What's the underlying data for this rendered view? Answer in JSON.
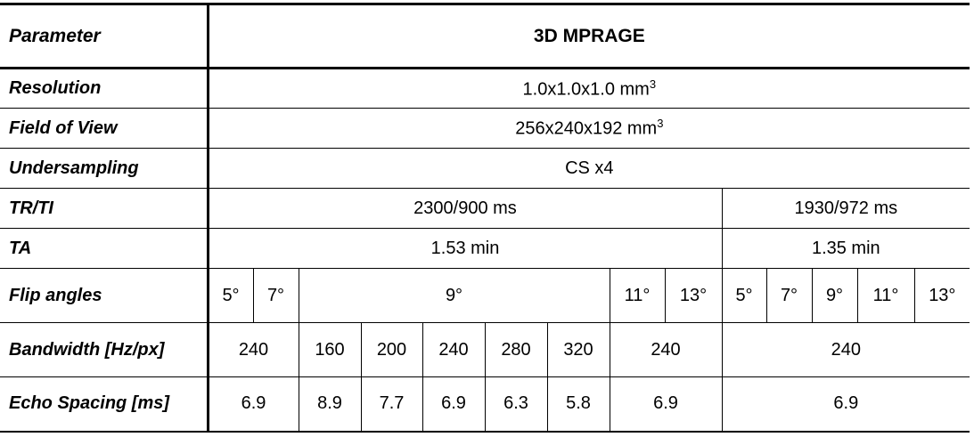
{
  "table": {
    "header": [
      "Parameter",
      "3D MPRAGE"
    ],
    "rows": [
      [
        "Resolution",
        {
          "text": "1.0x1.0x1.0 mm",
          "superscript": "3"
        }
      ],
      [
        "Field of View",
        {
          "text": "256x240x192 mm",
          "superscript": "3"
        }
      ],
      [
        "Undersampling",
        "CS x4"
      ],
      [
        "TR/TI",
        "2300/900 ms",
        "1930/972 ms"
      ],
      [
        "TA",
        "1.53 min",
        "1.35 min"
      ],
      [
        "Flip angles",
        "5°",
        "7°",
        "9°",
        "11°",
        "13°",
        "5°",
        "7°",
        "9°",
        "11°",
        "13°"
      ],
      [
        "Bandwidth [Hz/px]",
        240,
        160,
        200,
        240,
        280,
        320,
        240,
        240
      ],
      [
        "Echo Spacing [ms]",
        6.9,
        8.9,
        7.7,
        6.9,
        6.3,
        5.8,
        6.9,
        6.9
      ]
    ]
  }
}
